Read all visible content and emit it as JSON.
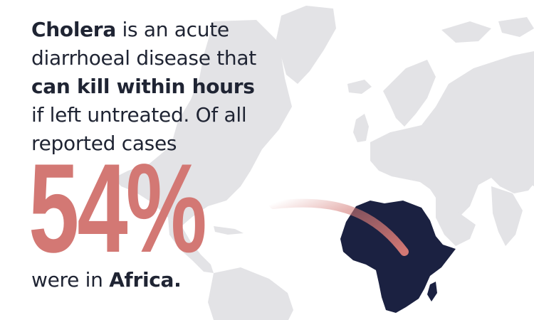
{
  "colors": {
    "text": "#1f2433",
    "accent": "#d37874",
    "map_land": "#e3e3e6",
    "africa": "#1b2141",
    "background": "#ffffff"
  },
  "intro": {
    "line1_bold": "Cholera",
    "line1_rest": " is an acute",
    "line2": "diarrhoeal disease that",
    "line3_bold": "can kill within hours",
    "line4": "if left untreated. Of all",
    "line5": "reported cases"
  },
  "stat": {
    "value": "54%",
    "percent": 54
  },
  "outro": {
    "prefix": "were in ",
    "region_bold": "Africa."
  },
  "map": {
    "highlighted_region": "africa-map",
    "background": "world-map"
  }
}
